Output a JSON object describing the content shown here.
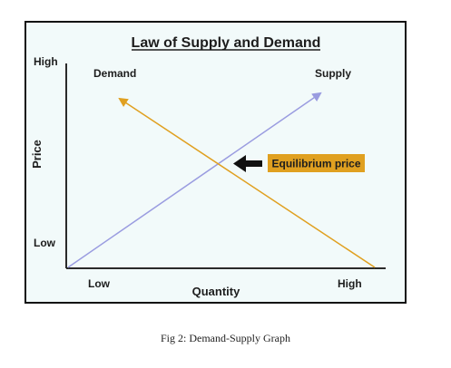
{
  "diagram": {
    "title": "Law of Supply and Demand",
    "y_axis": {
      "label": "Price",
      "high": "High",
      "low": "Low"
    },
    "x_axis": {
      "label": "Quantity",
      "low": "Low",
      "high": "High"
    },
    "curves": {
      "demand": {
        "label": "Demand",
        "color": "#e0a020"
      },
      "supply": {
        "label": "Supply",
        "color": "#9a9ce0"
      }
    },
    "equilibrium": {
      "label": "Equilibrium price",
      "box_color": "#e0a020",
      "arrow_color": "#111111"
    }
  },
  "caption": "Fig 2: Demand-Supply Graph"
}
